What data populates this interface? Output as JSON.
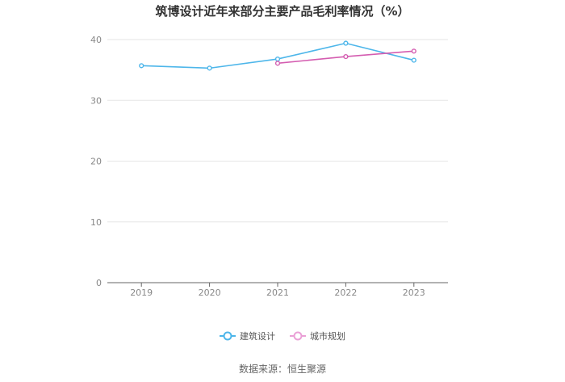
{
  "chart_data": {
    "type": "line",
    "title": "筑博设计近年来部分主要产品毛利率情况（%）",
    "categories": [
      "2019",
      "2020",
      "2021",
      "2022",
      "2023"
    ],
    "ylim": [
      0,
      40
    ],
    "yticks": [
      "0",
      "10",
      "20",
      "30",
      "40"
    ],
    "grid": true,
    "legend_position": "bottom",
    "series": [
      {
        "name": "建筑设计",
        "color": "#4db6ea",
        "values": [
          35.7,
          35.3,
          36.8,
          39.4,
          36.6
        ]
      },
      {
        "name": "城市规划",
        "color": "#d45cb0",
        "legend_color": "#eaa0d6",
        "values": [
          null,
          null,
          36.1,
          37.2,
          38.1
        ]
      }
    ]
  },
  "source": "数据来源：恒生聚源"
}
